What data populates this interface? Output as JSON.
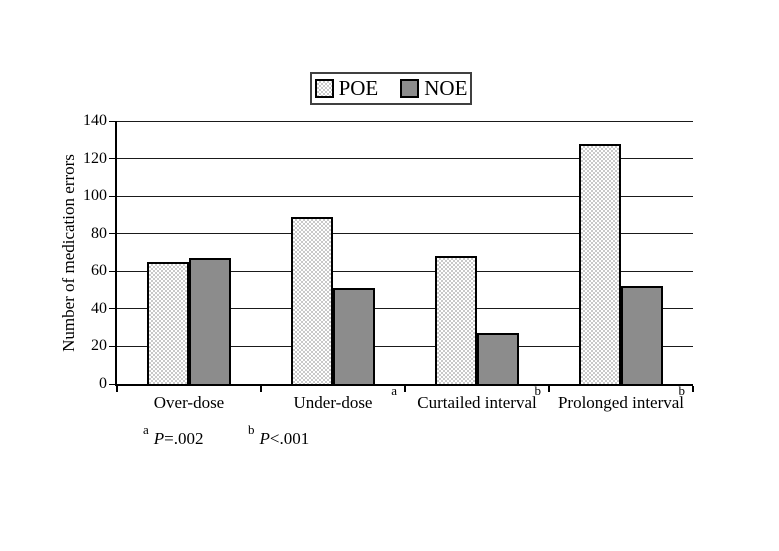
{
  "chart_data": {
    "type": "bar",
    "title": "",
    "categories": [
      "Over-dose",
      "Under-dose",
      "Curtailed interval",
      "Prolonged interval"
    ],
    "category_superscripts": [
      "",
      "a",
      "b",
      "b"
    ],
    "series": [
      {
        "name": "POE",
        "style": "dotted-pattern",
        "values": [
          65,
          89,
          68,
          128
        ]
      },
      {
        "name": "NOE",
        "style": "solid-gray",
        "values": [
          67,
          51,
          27,
          52
        ]
      }
    ],
    "xlabel": "",
    "ylabel": "Number of medication errors",
    "ylim": [
      0,
      140
    ],
    "yticks": [
      0,
      20,
      40,
      60,
      80,
      100,
      120,
      140
    ],
    "grid": true,
    "legend_position": "top-center"
  },
  "legend": {
    "items": [
      {
        "label": "POE"
      },
      {
        "label": "NOE"
      }
    ]
  },
  "footnotes": [
    {
      "marker": "a",
      "p_symbol": "P",
      "value": "=.002"
    },
    {
      "marker": "b",
      "p_symbol": "P",
      "value": "<.001"
    }
  ],
  "colors": {
    "poe_pattern_dot": "#c9c9c9",
    "poe_background": "#ffffff",
    "noe_fill": "#8c8c8c",
    "bar_border": "#000000",
    "grid_line": "#1a1a1a",
    "legend_border": "#404040",
    "background": "#ffffff"
  }
}
